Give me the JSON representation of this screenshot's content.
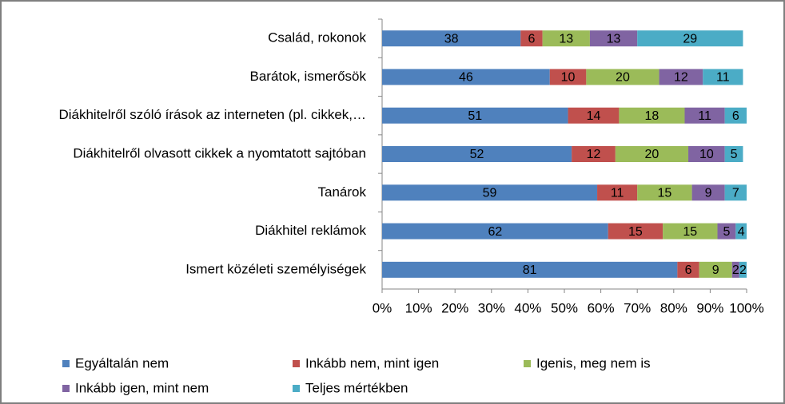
{
  "chart_data": {
    "type": "stacked-bar-horizontal",
    "categories": [
      "Család, rokonok",
      "Barátok, ismerősök",
      "Diákhitelről szóló írások az interneten (pl. cikkek,…",
      "Diákhitelről olvasott cikkek a nyomtatott sajtóban",
      "Tanárok",
      "Diákhitel reklámok",
      "Ismert közéleti személyiségek"
    ],
    "series": [
      {
        "name": "Egyáltalán nem",
        "color": "#4f81bd",
        "values": [
          38,
          46,
          51,
          52,
          59,
          62,
          81
        ]
      },
      {
        "name": "Inkább nem, mint igen",
        "color": "#c0504d",
        "values": [
          6,
          10,
          14,
          12,
          11,
          15,
          6
        ]
      },
      {
        "name": "Igenis, meg nem is",
        "color": "#9bbb59",
        "values": [
          13,
          20,
          18,
          20,
          15,
          15,
          9
        ]
      },
      {
        "name": "Inkább igen, mint nem",
        "color": "#8064a2",
        "values": [
          13,
          12,
          11,
          10,
          9,
          5,
          2
        ]
      },
      {
        "name": "Teljes mértékben",
        "color": "#4bacc6",
        "values": [
          29,
          11,
          6,
          5,
          7,
          4,
          2
        ]
      }
    ],
    "xlim": [
      0,
      100
    ],
    "xticks": [
      {
        "value": 0,
        "label": "0%"
      },
      {
        "value": 10,
        "label": "10%"
      },
      {
        "value": 20,
        "label": "20%"
      },
      {
        "value": 30,
        "label": "30%"
      },
      {
        "value": 40,
        "label": "40%"
      },
      {
        "value": 50,
        "label": "50%"
      },
      {
        "value": 60,
        "label": "60%"
      },
      {
        "value": 70,
        "label": "70%"
      },
      {
        "value": 80,
        "label": "80%"
      },
      {
        "value": 90,
        "label": "90%"
      },
      {
        "value": 100,
        "label": "100%"
      }
    ],
    "legend": "bottom"
  }
}
